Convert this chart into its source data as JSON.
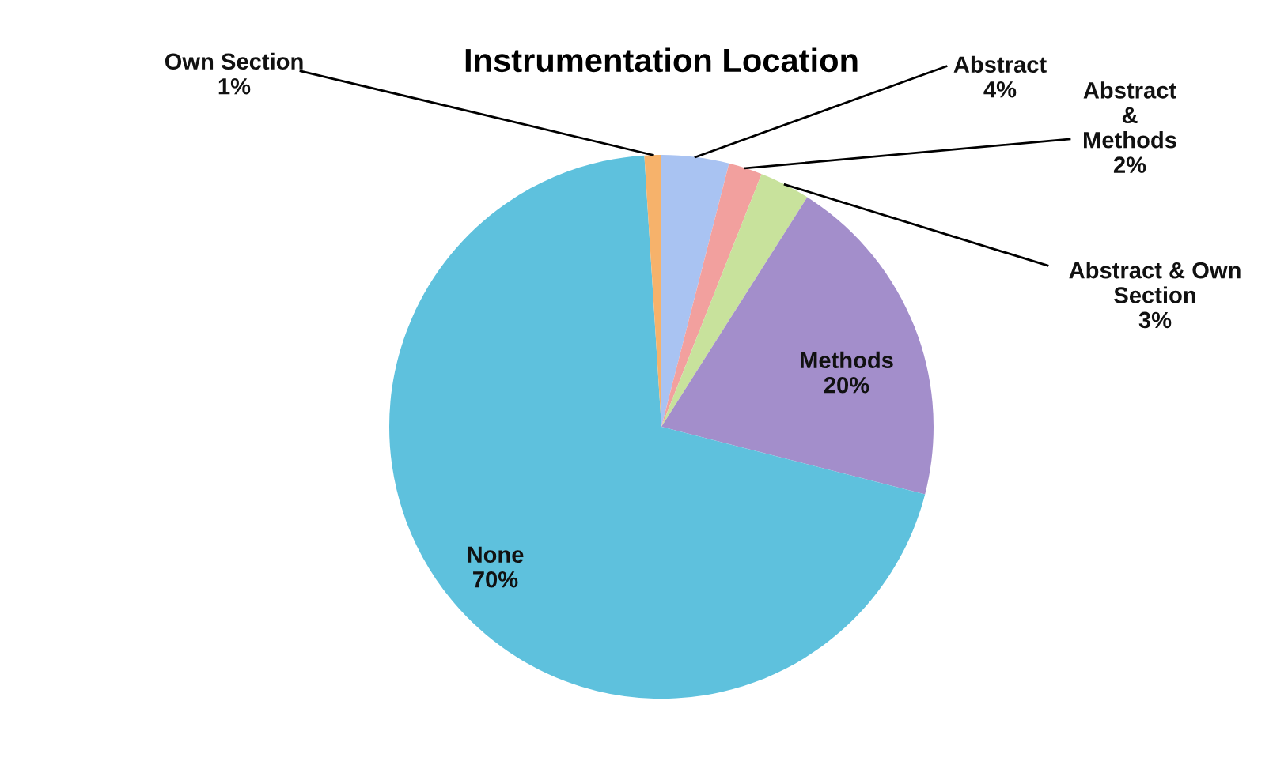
{
  "chart_data": {
    "type": "pie",
    "title": "Instrumentation Location",
    "categories": [
      "Abstract",
      "Abstract\n&\nMethods",
      "Abstract & Own\nSection",
      "Methods",
      "None",
      "Own Section"
    ],
    "values": [
      4,
      2,
      3,
      20,
      70,
      1
    ],
    "value_labels": [
      "4%",
      "2%",
      "3%",
      "20%",
      "70%",
      "1%"
    ],
    "colors": [
      "#a9c3f2",
      "#f2a09e",
      "#c8e29c",
      "#a38ecb",
      "#5ec1dd",
      "#f6b26b"
    ],
    "legend": false
  }
}
